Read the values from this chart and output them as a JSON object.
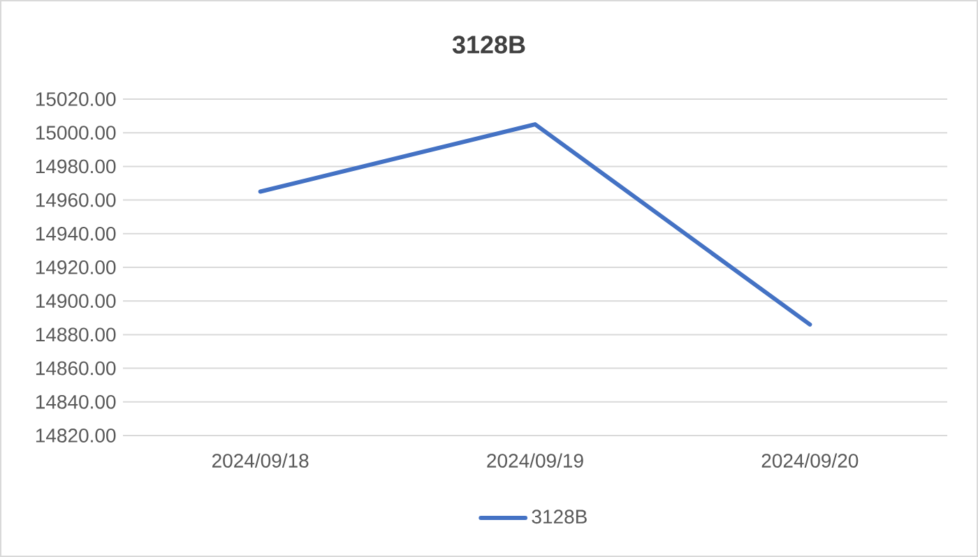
{
  "chart_data": {
    "type": "line",
    "title": "3128B",
    "categories": [
      "2024/09/18",
      "2024/09/19",
      "2024/09/20"
    ],
    "series": [
      {
        "name": "3128B",
        "color": "#4472c4",
        "values": [
          14965,
          15005,
          14886
        ]
      }
    ],
    "ylim": [
      14820,
      15020
    ],
    "yticks": [
      {
        "value": 14820,
        "label": "14820.00"
      },
      {
        "value": 14840,
        "label": "14840.00"
      },
      {
        "value": 14860,
        "label": "14860.00"
      },
      {
        "value": 14880,
        "label": "14880.00"
      },
      {
        "value": 14900,
        "label": "14900.00"
      },
      {
        "value": 14920,
        "label": "14920.00"
      },
      {
        "value": 14940,
        "label": "14940.00"
      },
      {
        "value": 14960,
        "label": "14960.00"
      },
      {
        "value": 14980,
        "label": "14980.00"
      },
      {
        "value": 15000,
        "label": "15000.00"
      },
      {
        "value": 15020,
        "label": "15020.00"
      }
    ],
    "grid": "y",
    "legend": "bottom",
    "marker": "none",
    "line_style": "solid"
  }
}
